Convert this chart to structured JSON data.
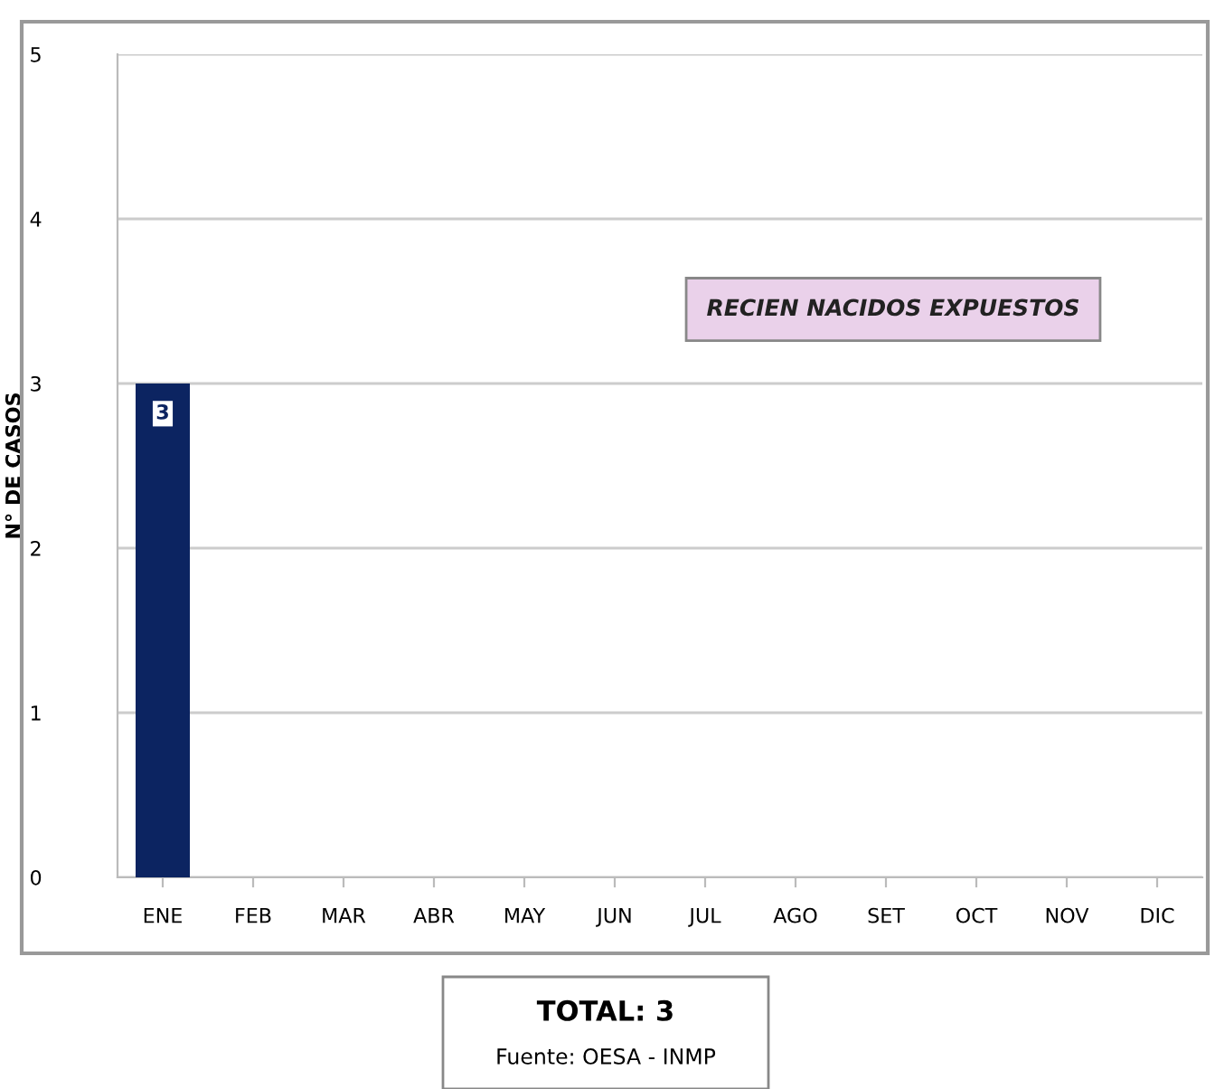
{
  "chart_data": {
    "type": "bar",
    "title": "RECIEN NACIDOS EXPUESTOS",
    "ylabel": "N° DE CASOS",
    "categories": [
      "ENE",
      "FEB",
      "MAR",
      "ABR",
      "MAY",
      "JUN",
      "JUL",
      "AGO",
      "SET",
      "OCT",
      "NOV",
      "DIC"
    ],
    "values": [
      3,
      0,
      0,
      0,
      0,
      0,
      0,
      0,
      0,
      0,
      0,
      0
    ],
    "value_labels": [
      "3",
      null,
      null,
      null,
      null,
      null,
      null,
      null,
      null,
      null,
      null,
      null
    ],
    "color": "#0c2461",
    "ylim": [
      0,
      5
    ],
    "yticks": [
      0,
      1,
      2,
      3,
      4,
      5
    ],
    "grid": "y",
    "annotations": [
      "TOTAL: 3",
      "Fuente: OESA - INMP"
    ]
  }
}
